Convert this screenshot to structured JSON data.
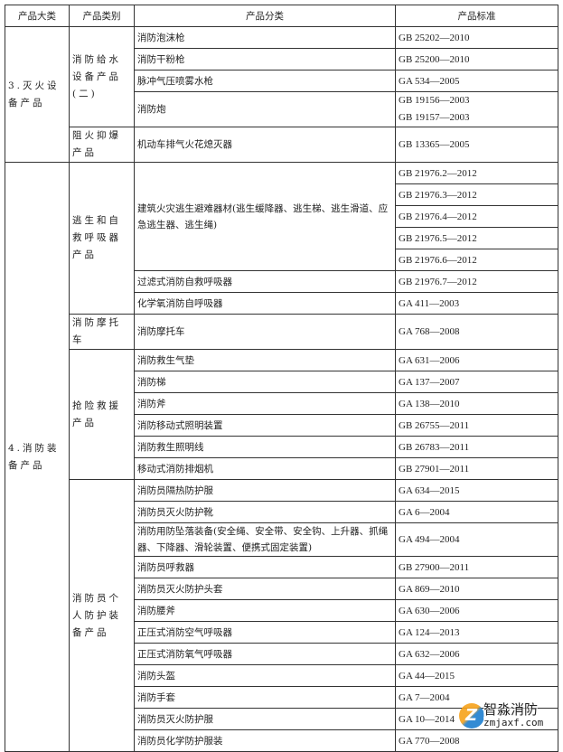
{
  "headers": [
    "产品大类",
    "产品类别",
    "产品分类",
    "产品标准"
  ],
  "categories": [
    {
      "name": "3.灭火设备产品",
      "groups": [
        {
          "name": "消防给水设备产品(二)",
          "items": [
            {
              "product": "消防泡沫枪",
              "standards": [
                "GB 25202—2010"
              ]
            },
            {
              "product": "消防干粉枪",
              "standards": [
                "GB 25200—2010"
              ]
            },
            {
              "product": "脉冲气压喷雾水枪",
              "standards": [
                "GA 534—2005"
              ]
            },
            {
              "product": "消防炮",
              "standards": [
                "GB 19156—2003",
                "GB 19157—2003"
              ]
            }
          ]
        },
        {
          "name": "阻火抑爆产品",
          "items": [
            {
              "product": "机动车排气火花熄灭器",
              "standards": [
                "GB 13365—2005"
              ]
            }
          ]
        }
      ]
    },
    {
      "name": "4.消防装备产品",
      "groups": [
        {
          "name": "逃生和自救呼吸器产品",
          "items": [
            {
              "product": "建筑火灾逃生避难器材(逃生缓降器、逃生梯、逃生滑道、应急逃生器、逃生绳)",
              "split": true,
              "standards": [
                "GB 21976.2—2012",
                "GB 21976.3—2012",
                "GB 21976.4—2012",
                "GB 21976.5—2012",
                "GB 21976.6—2012"
              ]
            },
            {
              "product": "过滤式消防自救呼吸器",
              "standards": [
                "GB 21976.7—2012"
              ]
            },
            {
              "product": "化学氧消防自呼吸器",
              "standards": [
                "GA 411—2003"
              ]
            }
          ]
        },
        {
          "name": "消防摩托车",
          "items": [
            {
              "product": "消防摩托车",
              "standards": [
                "GA 768—2008"
              ]
            }
          ]
        },
        {
          "name": "抢险救援产品",
          "items": [
            {
              "product": "消防救生气垫",
              "standards": [
                "GA 631—2006"
              ]
            },
            {
              "product": "消防梯",
              "standards": [
                "GA 137—2007"
              ]
            },
            {
              "product": "消防斧",
              "standards": [
                "GA 138—2010"
              ]
            },
            {
              "product": "消防移动式照明装置",
              "standards": [
                "GB 26755—2011"
              ]
            },
            {
              "product": "消防救生照明线",
              "standards": [
                "GB 26783—2011"
              ]
            },
            {
              "product": "移动式消防排烟机",
              "standards": [
                "GB 27901—2011"
              ]
            }
          ]
        },
        {
          "name": "消防员个人防护装备产品",
          "items": [
            {
              "product": "消防员隔热防护服",
              "standards": [
                "GA 634—2015"
              ]
            },
            {
              "product": "消防员灭火防护靴",
              "standards": [
                "GA 6—2004"
              ]
            },
            {
              "product": "消防用防坠落装备(安全绳、安全带、安全钩、上升器、抓绳器、下降器、滑轮装置、便携式固定装置)",
              "standards": [
                "GA 494—2004"
              ]
            },
            {
              "product": "消防员呼救器",
              "standards": [
                "GB 27900—2011"
              ]
            },
            {
              "product": "消防员灭火防护头套",
              "standards": [
                "GA 869—2010"
              ]
            },
            {
              "product": "消防腰斧",
              "standards": [
                "GA 630—2006"
              ]
            },
            {
              "product": "正压式消防空气呼吸器",
              "standards": [
                "GA 124—2013"
              ]
            },
            {
              "product": "正压式消防氧气呼吸器",
              "standards": [
                "GA 632—2006"
              ]
            },
            {
              "product": "消防头盔",
              "standards": [
                "GA 44—2015"
              ]
            },
            {
              "product": "消防手套",
              "standards": [
                "GA 7—2004"
              ]
            },
            {
              "product": "消防员灭火防护服",
              "standards": [
                "GA 10—2014"
              ]
            },
            {
              "product": "消防员化学防护服装",
              "standards": [
                "GA 770—2008"
              ]
            }
          ]
        }
      ]
    }
  ],
  "watermark": {
    "name": "智淼消防",
    "url": "zmjaxf.com"
  }
}
